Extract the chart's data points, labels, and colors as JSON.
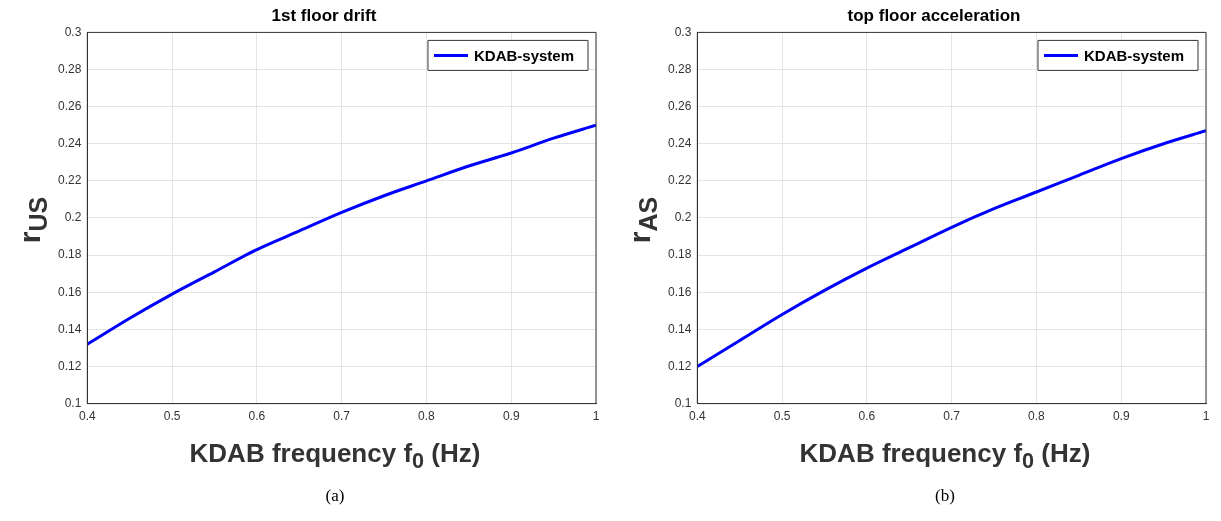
{
  "chart_data": [
    {
      "type": "line",
      "title": "1st floor drift",
      "xlabel": "KDAB frequency f$_{0}$ (Hz)",
      "ylabel": "r$_{US}$",
      "annotations": [
        "(a)"
      ],
      "x": [
        0.4,
        0.45,
        0.5,
        0.55,
        0.6,
        0.65,
        0.7,
        0.75,
        0.8,
        0.85,
        0.9,
        0.95,
        1
      ],
      "series": [
        {
          "name": "KDAB-system",
          "color": "#0000ff",
          "values": [
            0.132,
            0.146,
            0.159,
            0.171,
            0.183,
            0.193,
            0.203,
            0.212,
            0.22,
            0.228,
            0.235,
            0.243,
            0.25
          ]
        }
      ],
      "xlim": [
        0.4,
        1
      ],
      "xticks": [
        0.4,
        0.5,
        0.6,
        0.7,
        0.8,
        0.9,
        1
      ],
      "ylim": [
        0.1,
        0.3
      ],
      "yticks": [
        0.1,
        0.12,
        0.14,
        0.16,
        0.18,
        0.2,
        0.22,
        0.24,
        0.26,
        0.28,
        0.3
      ],
      "grid": true,
      "legend": "top right"
    },
    {
      "type": "line",
      "title": "top floor acceleration",
      "xlabel": "KDAB frequency f$_{0}$ (Hz)",
      "ylabel": "r$_{AS}$",
      "annotations": [
        "(b)"
      ],
      "x": [
        0.4,
        0.45,
        0.5,
        0.55,
        0.6,
        0.65,
        0.7,
        0.75,
        0.8,
        0.85,
        0.9,
        0.95,
        1
      ],
      "series": [
        {
          "name": "KDAB-system",
          "color": "#0000ff",
          "values": [
            0.12,
            0.134,
            0.148,
            0.161,
            0.173,
            0.184,
            0.195,
            0.205,
            0.214,
            0.223,
            0.232,
            0.24,
            0.247
          ]
        }
      ],
      "xlim": [
        0.4,
        1
      ],
      "xticks": [
        0.4,
        0.5,
        0.6,
        0.7,
        0.8,
        0.9,
        1
      ],
      "ylim": [
        0.1,
        0.3
      ],
      "yticks": [
        0.1,
        0.12,
        0.14,
        0.16,
        0.18,
        0.2,
        0.22,
        0.24,
        0.26,
        0.28,
        0.3
      ],
      "grid": true,
      "legend": "top right"
    }
  ]
}
